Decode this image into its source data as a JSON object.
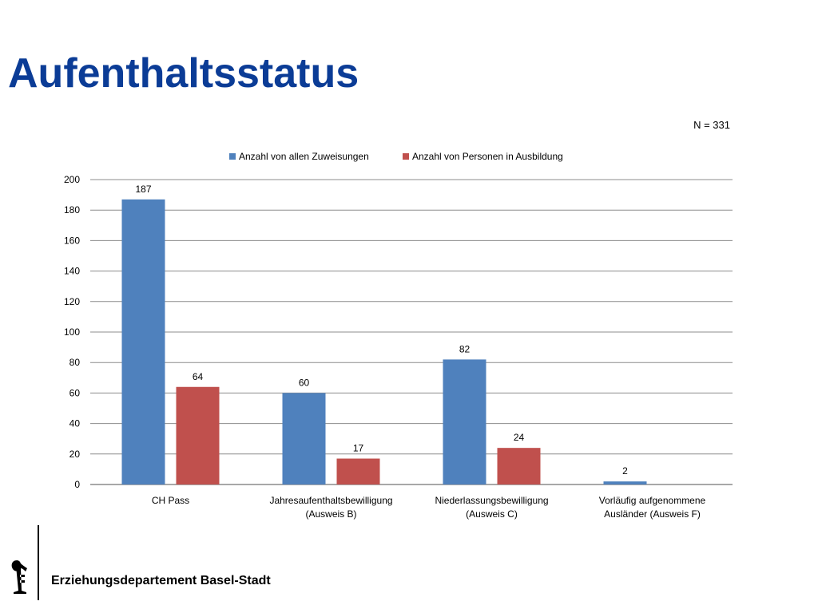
{
  "slide": {
    "title": "Aufenthaltsstatus",
    "sample_size": "N = 331",
    "footer": "Erziehungsdepartement Basel-Stadt",
    "logo_icon": "basel-staff-icon"
  },
  "colors": {
    "title": "#0b3c96",
    "series_blue": "#4f81bd",
    "series_red": "#c0504d",
    "grid": "#8c8c8c"
  },
  "chart_data": {
    "type": "bar",
    "categories": [
      [
        "CH Pass"
      ],
      [
        "Jahresaufenthaltsbewilligung",
        "(Ausweis B)"
      ],
      [
        "Niederlassungsbewilligung",
        "(Ausweis C)"
      ],
      [
        "Vorläufig aufgenommene",
        "Ausländer (Ausweis F)"
      ]
    ],
    "series": [
      {
        "name": "Anzahl von allen Zuweisungen",
        "values": [
          187,
          60,
          82,
          2
        ],
        "color": "#4f81bd"
      },
      {
        "name": "Anzahl von Personen in Ausbildung",
        "values": [
          64,
          17,
          24,
          null
        ],
        "color": "#c0504d"
      }
    ],
    "ylim": [
      0,
      200
    ],
    "yticks": [
      0,
      20,
      40,
      60,
      80,
      100,
      120,
      140,
      160,
      180,
      200
    ],
    "grid": true,
    "legend": "top"
  }
}
